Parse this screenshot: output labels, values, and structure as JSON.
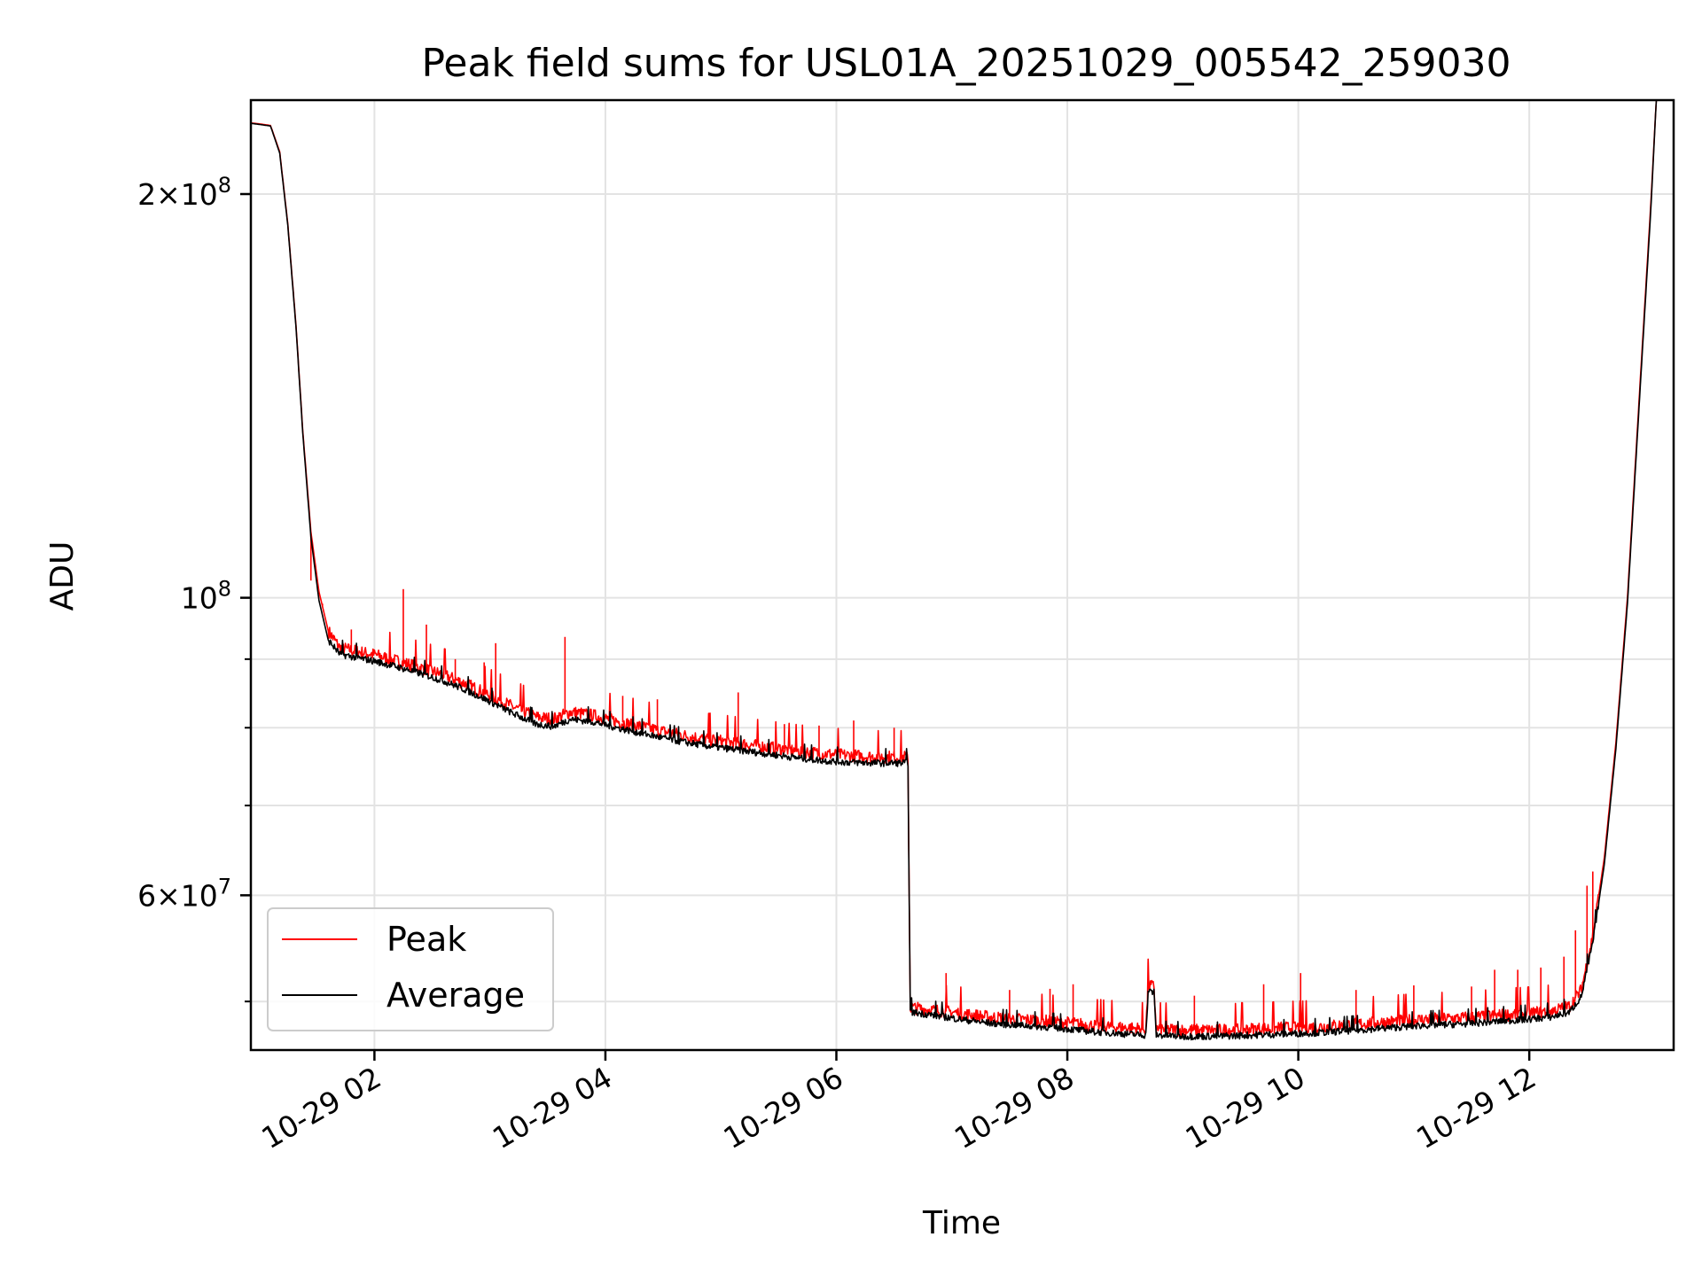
{
  "chart_data": {
    "type": "line",
    "title": "Peak field sums for USL01A_20251029_005542_259030",
    "xlabel": "Time",
    "ylabel": "ADU",
    "yscale": "log",
    "ylim": [
      46000000,
      235000000
    ],
    "xlim_hours": [
      0.93,
      13.25
    ],
    "grid": true,
    "legend_position": "lower-left",
    "x_ticks": [
      {
        "value": 2,
        "label": "10-29 02"
      },
      {
        "value": 4,
        "label": "10-29 04"
      },
      {
        "value": 6,
        "label": "10-29 06"
      },
      {
        "value": 8,
        "label": "10-29 08"
      },
      {
        "value": 10,
        "label": "10-29 10"
      },
      {
        "value": 12,
        "label": "10-29 12"
      }
    ],
    "y_major_ticks": [
      {
        "value": 200000000,
        "mant": "2",
        "exp": "8"
      },
      {
        "value": 100000000,
        "mant": "",
        "exp": "8"
      },
      {
        "value": 60000000,
        "mant": "6",
        "exp": "7"
      }
    ],
    "y_minor_ticks": [
      50000000,
      70000000,
      80000000,
      90000000
    ],
    "series": [
      {
        "name": "Peak",
        "color": "#ff0000",
        "points": [
          [
            0.93,
            226000000
          ],
          [
            1.02,
            225500000
          ],
          [
            1.1,
            225000000
          ],
          [
            1.18,
            215000000
          ],
          [
            1.25,
            190000000
          ],
          [
            1.32,
            160000000
          ],
          [
            1.38,
            133000000
          ],
          [
            1.45,
            112000000
          ],
          [
            1.52,
            101000000
          ],
          [
            1.6,
            94500000
          ],
          [
            1.7,
            91800000
          ],
          [
            1.85,
            91200000
          ],
          [
            2.0,
            90700000
          ],
          [
            2.2,
            89700000
          ],
          [
            2.4,
            88700000
          ],
          [
            2.6,
            87600000
          ],
          [
            2.8,
            86200000
          ],
          [
            3.0,
            84600000
          ],
          [
            3.2,
            82900000
          ],
          [
            3.4,
            81500000
          ],
          [
            3.55,
            81200000
          ],
          [
            3.7,
            82200000
          ],
          [
            3.9,
            81700000
          ],
          [
            4.1,
            80900000
          ],
          [
            4.3,
            80200000
          ],
          [
            4.5,
            79500000
          ],
          [
            4.7,
            78900000
          ],
          [
            4.9,
            78400000
          ],
          [
            5.1,
            78000000
          ],
          [
            5.3,
            77600000
          ],
          [
            5.5,
            77200000
          ],
          [
            5.7,
            76800000
          ],
          [
            5.9,
            76500000
          ],
          [
            6.1,
            76300000
          ],
          [
            6.35,
            76100000
          ],
          [
            6.62,
            76100000
          ],
          [
            6.64,
            49500000
          ],
          [
            6.8,
            49300000
          ],
          [
            7.0,
            49100000
          ],
          [
            7.3,
            48700000
          ],
          [
            7.6,
            48500000
          ],
          [
            7.9,
            48300000
          ],
          [
            8.2,
            48000000
          ],
          [
            8.5,
            47800000
          ],
          [
            8.68,
            47700000
          ],
          [
            8.7,
            51400000
          ],
          [
            8.75,
            51300000
          ],
          [
            8.77,
            47700000
          ],
          [
            9.0,
            47600000
          ],
          [
            9.3,
            47600000
          ],
          [
            9.6,
            47700000
          ],
          [
            9.9,
            47800000
          ],
          [
            10.2,
            47900000
          ],
          [
            10.5,
            48100000
          ],
          [
            10.8,
            48300000
          ],
          [
            11.1,
            48500000
          ],
          [
            11.4,
            48600000
          ],
          [
            11.7,
            48800000
          ],
          [
            12.0,
            49000000
          ],
          [
            12.2,
            49200000
          ],
          [
            12.35,
            49600000
          ],
          [
            12.45,
            51000000
          ],
          [
            12.55,
            56000000
          ],
          [
            12.65,
            64000000
          ],
          [
            12.75,
            78000000
          ],
          [
            12.85,
            100000000
          ],
          [
            12.95,
            140000000
          ],
          [
            13.05,
            195000000
          ],
          [
            13.1,
            235000000
          ]
        ],
        "spikes": [
          [
            1.45,
            103000000
          ],
          [
            1.55,
            99000000
          ],
          [
            1.8,
            94700000
          ],
          [
            2.25,
            101500000
          ],
          [
            2.45,
            95500000
          ],
          [
            2.7,
            90000000
          ],
          [
            2.95,
            89500000
          ],
          [
            3.05,
            92500000
          ],
          [
            3.65,
            93500000
          ],
          [
            4.15,
            84500000
          ],
          [
            4.45,
            84000000
          ],
          [
            5.15,
            85000000
          ],
          [
            5.55,
            80500000
          ],
          [
            5.85,
            80300000
          ],
          [
            6.15,
            81000000
          ],
          [
            6.5,
            80000000
          ],
          [
            6.95,
            52500000
          ],
          [
            7.5,
            51000000
          ],
          [
            7.85,
            51100000
          ],
          [
            8.05,
            51500000
          ],
          [
            8.7,
            53500000
          ],
          [
            9.1,
            50500000
          ],
          [
            9.7,
            51500000
          ],
          [
            10.02,
            52500000
          ],
          [
            10.5,
            51000000
          ],
          [
            11.0,
            51400000
          ],
          [
            11.5,
            51300000
          ],
          [
            11.7,
            52800000
          ],
          [
            11.9,
            52800000
          ],
          [
            12.1,
            53000000
          ],
          [
            12.3,
            54000000
          ],
          [
            12.4,
            56500000
          ],
          [
            12.5,
            61000000
          ],
          [
            12.55,
            62500000
          ]
        ]
      },
      {
        "name": "Average",
        "color": "#000000",
        "points": [
          [
            0.93,
            225800000
          ],
          [
            1.02,
            225300000
          ],
          [
            1.1,
            224800000
          ],
          [
            1.18,
            214500000
          ],
          [
            1.25,
            189500000
          ],
          [
            1.32,
            159500000
          ],
          [
            1.38,
            132500000
          ],
          [
            1.45,
            111000000
          ],
          [
            1.52,
            99500000
          ],
          [
            1.6,
            93000000
          ],
          [
            1.7,
            90800000
          ],
          [
            1.85,
            90200000
          ],
          [
            2.0,
            89700000
          ],
          [
            2.2,
            88800000
          ],
          [
            2.4,
            87800000
          ],
          [
            2.6,
            86700000
          ],
          [
            2.8,
            85300000
          ],
          [
            3.0,
            83700000
          ],
          [
            3.2,
            82000000
          ],
          [
            3.4,
            80500000
          ],
          [
            3.55,
            80200000
          ],
          [
            3.7,
            81200000
          ],
          [
            3.9,
            80800000
          ],
          [
            4.1,
            80000000
          ],
          [
            4.3,
            79300000
          ],
          [
            4.5,
            78600000
          ],
          [
            4.7,
            78000000
          ],
          [
            4.9,
            77500000
          ],
          [
            5.1,
            77100000
          ],
          [
            5.3,
            76700000
          ],
          [
            5.5,
            76300000
          ],
          [
            5.7,
            75900000
          ],
          [
            5.9,
            75600000
          ],
          [
            6.1,
            75400000
          ],
          [
            6.35,
            75300000
          ],
          [
            6.62,
            75300000
          ],
          [
            6.64,
            49100000
          ],
          [
            6.8,
            48900000
          ],
          [
            7.0,
            48600000
          ],
          [
            7.3,
            48200000
          ],
          [
            7.6,
            48000000
          ],
          [
            7.9,
            47800000
          ],
          [
            8.2,
            47500000
          ],
          [
            8.5,
            47300000
          ],
          [
            8.68,
            47200000
          ],
          [
            8.7,
            50900000
          ],
          [
            8.75,
            50800000
          ],
          [
            8.77,
            47200000
          ],
          [
            9.0,
            47100000
          ],
          [
            9.3,
            47100000
          ],
          [
            9.6,
            47200000
          ],
          [
            9.9,
            47300000
          ],
          [
            10.2,
            47400000
          ],
          [
            10.5,
            47600000
          ],
          [
            10.8,
            47800000
          ],
          [
            11.1,
            48000000
          ],
          [
            11.4,
            48100000
          ],
          [
            11.7,
            48300000
          ],
          [
            12.0,
            48500000
          ],
          [
            12.2,
            48700000
          ],
          [
            12.35,
            49100000
          ],
          [
            12.45,
            50400000
          ],
          [
            12.55,
            55300000
          ],
          [
            12.65,
            63300000
          ],
          [
            12.75,
            77200000
          ],
          [
            12.85,
            99000000
          ],
          [
            12.95,
            138500000
          ],
          [
            13.05,
            193000000
          ],
          [
            13.1,
            235000000
          ]
        ]
      }
    ]
  }
}
